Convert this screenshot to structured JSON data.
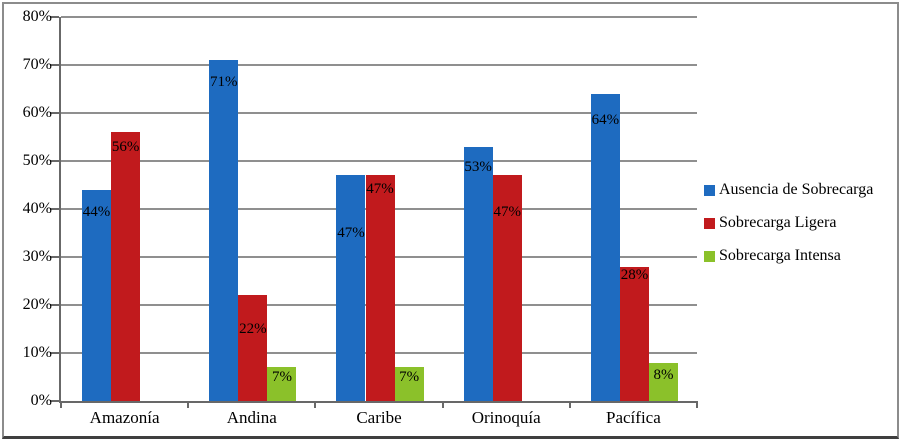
{
  "chart_data": {
    "type": "bar",
    "title": "",
    "categories": [
      "Amazonía",
      "Andina",
      "Caribe",
      "Orinoquía",
      "Pacífica"
    ],
    "series": [
      {
        "name": "Ausencia de Sobrecarga",
        "color": "#1E6BC0",
        "values": [
          44,
          71,
          47,
          53,
          64
        ],
        "data_labels": [
          "44%",
          "71%",
          "47%",
          "53%",
          "64%"
        ],
        "label_dy": [
          15,
          15,
          51,
          13,
          19
        ]
      },
      {
        "name": "Sobrecarga Ligera",
        "color": "#C11A1D",
        "values": [
          56,
          22,
          47,
          47,
          28
        ],
        "data_labels": [
          "56%",
          "22%",
          "47%",
          "47%",
          "28%"
        ],
        "label_dy": [
          8,
          27,
          7,
          30,
          1
        ]
      },
      {
        "name": "Sobrecarga Intensa",
        "color": "#8BC12A",
        "values": [
          0,
          7,
          7,
          0,
          8
        ],
        "data_labels": [
          "",
          "7%",
          "7%",
          "",
          "8%"
        ],
        "label_dy": [
          0,
          3,
          3,
          0,
          5
        ]
      }
    ],
    "xlabel": "",
    "ylabel": "",
    "ylim": [
      0,
      80
    ],
    "ytick_step": 10,
    "ytick_labels": [
      "0%",
      "10%",
      "20%",
      "30%",
      "40%",
      "50%",
      "60%",
      "70%",
      "80%"
    ],
    "grid": true,
    "legend_position": "right",
    "axis_color": "#686868",
    "grid_color": "#8f8f8f",
    "label_color": "#000000"
  }
}
